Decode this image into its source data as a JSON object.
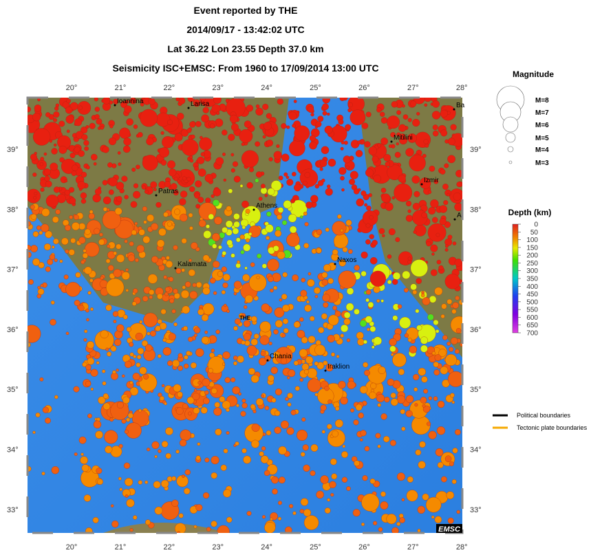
{
  "header": {
    "lines": [
      "Event reported by THE",
      "2014/09/17 - 13:42:02 UTC",
      "Lat 36.22    Lon  23.55     Depth  37.0 km",
      "Seismicity ISC+EMSC: From 1960 to 17/09/2014 13:00 UTC"
    ]
  },
  "map": {
    "lon_labels": [
      "20°",
      "21°",
      "22°",
      "23°",
      "24°",
      "25°",
      "26°",
      "27°",
      "28°"
    ],
    "lat_labels": [
      "39°",
      "38°",
      "37°",
      "36°",
      "35°",
      "34°",
      "33°"
    ],
    "places": [
      "Ioannina",
      "Larisa",
      "Mitilini",
      "Izmir",
      "Patras",
      "Athens",
      "Naxos",
      "Kalamata",
      "THE",
      "Chania",
      "Iraklion",
      "Ba",
      "A"
    ],
    "logo": "EMSC"
  },
  "magnitude_legend": {
    "title": "Magnitude",
    "items": [
      "M=8",
      "M=7",
      "M=6",
      "M=5",
      "M=4",
      "M=3"
    ]
  },
  "depth_legend": {
    "title": "Depth (km)",
    "ticks": [
      "0",
      "50",
      "100",
      "150",
      "200",
      "250",
      "300",
      "350",
      "400",
      "450",
      "500",
      "550",
      "600",
      "650",
      "700"
    ]
  },
  "boundary_legend": {
    "items": [
      "Political boundaries",
      "Tectonic plate boundaries"
    ]
  }
}
